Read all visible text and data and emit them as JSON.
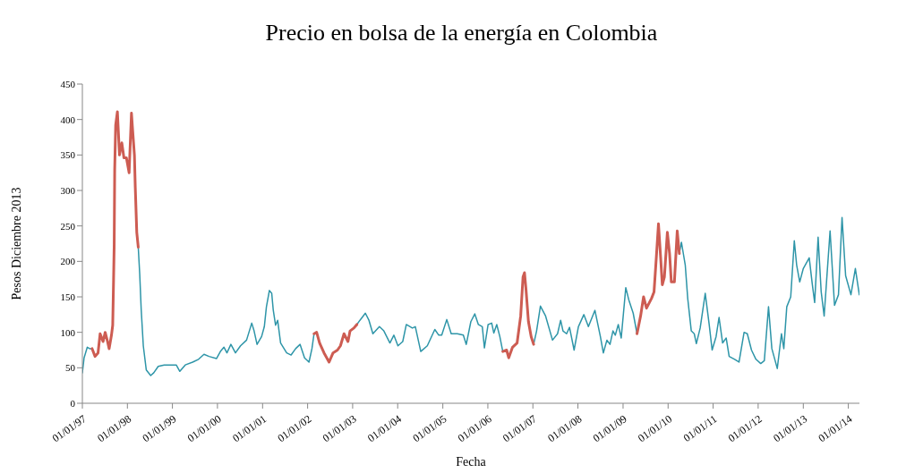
{
  "chart_data": {
    "type": "line",
    "title": "Precio en bolsa de la energía en Colombia",
    "xlabel": "Fecha",
    "ylabel": "Pesos Diciembre 2013",
    "xlim": [
      "1997-01-01",
      "2014-04-01"
    ],
    "xticks": [
      {
        "value": "1997-01-01",
        "label": "01/01/97"
      },
      {
        "value": "1998-01-01",
        "label": "01/01/98"
      },
      {
        "value": "1999-01-01",
        "label": "01/01/99"
      },
      {
        "value": "2000-01-01",
        "label": "01/01/00"
      },
      {
        "value": "2001-01-01",
        "label": "01/01/01"
      },
      {
        "value": "2002-01-01",
        "label": "01/01/02"
      },
      {
        "value": "2003-01-01",
        "label": "01/01/03"
      },
      {
        "value": "2004-01-01",
        "label": "01/01/04"
      },
      {
        "value": "2005-01-01",
        "label": "01/01/05"
      },
      {
        "value": "2006-01-01",
        "label": "01/01/06"
      },
      {
        "value": "2007-01-01",
        "label": "01/01/07"
      },
      {
        "value": "2008-01-01",
        "label": "01/01/08"
      },
      {
        "value": "2009-01-01",
        "label": "01/01/09"
      },
      {
        "value": "2010-01-01",
        "label": "01/01/10"
      },
      {
        "value": "2011-01-01",
        "label": "01/01/11"
      },
      {
        "value": "2012-01-01",
        "label": "01/01/12"
      },
      {
        "value": "2013-01-01",
        "label": "01/01/13"
      },
      {
        "value": "2014-01-01",
        "label": "01/01/14"
      }
    ],
    "ylim": [
      0,
      450
    ],
    "yticks": [
      0,
      50,
      100,
      150,
      200,
      250,
      300,
      350,
      400,
      450
    ],
    "line_style": "solid",
    "series": [
      {
        "color": "#2e95a8",
        "x": [
          "1997-01-01",
          "1997-01-15",
          "1997-02-10",
          "1997-03-01",
          "1997-03-21",
          "1997-06-01",
          "1998-03-30",
          "1998-04-11",
          "1998-04-23",
          "1998-05-10",
          "1998-06-03",
          "1998-07-09",
          "1998-08-03",
          "1998-09-08",
          "1998-10-26",
          "1998-12-27",
          "1999-02-01",
          "1999-03-02",
          "1999-04-15",
          "1999-06-14",
          "1999-08-01",
          "1999-09-14",
          "1999-10-25",
          "1999-12-24",
          "2000-01-25",
          "2000-02-23",
          "2000-03-18",
          "2000-04-19",
          "2000-05-26",
          "2000-07-06",
          "2000-08-24",
          "2000-10-05",
          "2000-10-24",
          "2000-11-17",
          "2000-12-24",
          "2001-01-15",
          "2001-02-01",
          "2001-02-25",
          "2001-03-16",
          "2001-03-28",
          "2001-04-16",
          "2001-05-03",
          "2001-05-27",
          "2001-07-15",
          "2001-08-20",
          "2001-09-26",
          "2001-11-01",
          "2001-12-07",
          "2002-01-12",
          "2002-02-05",
          "2002-02-22",
          "2002-08-01",
          "2003-02-04",
          "2003-03-01",
          "2003-04-14",
          "2003-05-13",
          "2003-06-14",
          "2003-08-06",
          "2003-09-11",
          "2003-10-30",
          "2003-12-01",
          "2004-01-03",
          "2004-02-11",
          "2004-03-11",
          "2004-04-29",
          "2004-05-23",
          "2004-07-06",
          "2004-08-28",
          "2004-10-28",
          "2004-11-29",
          "2004-12-23",
          "2005-02-02",
          "2005-03-10",
          "2005-04-28",
          "2005-06-16",
          "2005-07-10",
          "2005-08-16",
          "2005-09-17",
          "2005-10-16",
          "2005-11-17",
          "2005-12-04",
          "2006-01-03",
          "2006-02-01",
          "2006-02-18",
          "2006-03-14",
          "2006-04-08",
          "2006-05-02",
          "2006-09-01",
          "2007-01-07",
          "2007-01-31",
          "2007-03-03",
          "2007-04-14",
          "2007-06-09",
          "2007-07-20",
          "2007-08-14",
          "2007-09-02",
          "2007-10-01",
          "2007-10-25",
          "2007-12-01",
          "2008-01-05",
          "2008-02-18",
          "2008-03-26",
          "2008-05-18",
          "2008-07-01",
          "2008-07-25",
          "2008-08-23",
          "2008-09-17",
          "2008-10-11",
          "2008-10-30",
          "2008-11-23",
          "2008-12-17",
          "2009-01-23",
          "2009-02-16",
          "2009-03-24",
          "2009-04-24",
          "2009-10-01",
          "2010-04-02",
          "2010-04-19",
          "2010-05-20",
          "2010-06-09",
          "2010-07-08",
          "2010-08-01",
          "2010-08-18",
          "2010-09-18",
          "2010-10-29",
          "2010-11-30",
          "2010-12-24",
          "2011-01-25",
          "2011-02-18",
          "2011-03-19",
          "2011-04-17",
          "2011-05-11",
          "2011-06-24",
          "2011-07-30",
          "2011-09-09",
          "2011-10-05",
          "2011-11-08",
          "2011-12-14",
          "2012-01-22",
          "2012-02-20",
          "2012-03-25",
          "2012-04-21",
          "2012-06-04",
          "2012-07-08",
          "2012-07-27",
          "2012-08-20",
          "2012-09-21",
          "2012-10-20",
          "2012-11-08",
          "2012-12-03",
          "2013-01-01",
          "2013-02-18",
          "2013-03-14",
          "2013-04-03",
          "2013-05-01",
          "2013-05-26",
          "2013-06-19",
          "2013-08-06",
          "2013-09-11",
          "2013-10-13",
          "2013-11-11",
          "2013-12-10",
          "2014-01-22",
          "2014-02-27",
          "2014-03-31"
        ],
        "values": [
          43,
          64,
          79,
          77,
          77,
          null,
          220,
          182,
          132,
          81,
          47,
          39,
          43,
          52,
          54,
          54,
          54,
          45,
          54,
          58,
          62,
          69,
          66,
          63,
          73,
          79,
          71,
          83,
          71,
          81,
          89,
          113,
          102,
          83,
          94,
          108,
          136,
          159,
          155,
          132,
          110,
          117,
          85,
          71,
          68,
          77,
          83,
          64,
          58,
          77,
          98,
          null,
          111,
          117,
          127,
          117,
          98,
          108,
          102,
          85,
          96,
          81,
          87,
          111,
          106,
          108,
          73,
          81,
          104,
          96,
          96,
          118,
          98,
          98,
          96,
          83,
          115,
          126,
          111,
          108,
          78,
          111,
          113,
          99,
          111,
          94,
          73,
          null,
          83,
          102,
          137,
          123,
          89,
          98,
          117,
          102,
          98,
          107,
          75,
          108,
          125,
          108,
          131,
          94,
          71,
          89,
          83,
          102,
          96,
          111,
          92,
          163,
          146,
          127,
          98,
          null,
          211,
          227,
          195,
          148,
          102,
          98,
          84,
          106,
          155,
          111,
          75,
          94,
          121,
          85,
          92,
          66,
          62,
          58,
          100,
          98,
          75,
          62,
          56,
          60,
          136,
          77,
          49,
          98,
          77,
          136,
          150,
          229,
          195,
          171,
          190,
          205,
          169,
          142,
          234,
          157,
          123,
          243,
          138,
          153,
          262,
          180,
          153,
          190,
          153
        ]
      },
      {
        "color": "#cd5c52",
        "x": [
          "1997-03-21",
          "1997-04-14",
          "1997-05-08",
          "1997-05-25",
          "1997-06-18",
          "1997-07-05",
          "1997-07-24",
          "1997-08-06",
          "1997-08-25",
          "1997-09-04",
          "1997-09-11",
          "1997-09-16",
          "1997-09-20",
          "1997-09-28",
          "1997-10-12",
          "1997-10-29",
          "1997-11-17",
          "1997-12-04",
          "1997-12-24",
          "1998-01-15",
          "1998-02-03",
          "1998-02-15",
          "1998-02-27",
          "1998-03-06",
          "1998-03-18",
          "1998-03-30",
          "2000-01-01",
          "2002-02-22",
          "2002-03-15",
          "2002-04-08",
          "2002-05-14",
          "2002-06-24",
          "2002-07-26",
          "2002-08-31",
          "2002-09-24",
          "2002-10-23",
          "2002-11-24",
          "2002-12-11",
          "2003-01-11",
          "2003-02-04",
          "2004-06-01",
          "2006-05-02",
          "2006-06-02",
          "2006-06-19",
          "2006-07-20",
          "2006-08-26",
          "2006-09-24",
          "2006-10-13",
          "2006-10-25",
          "2006-11-06",
          "2006-11-26",
          "2006-12-18",
          "2007-01-07",
          "2008-01-01",
          "2009-04-24",
          "2009-05-23",
          "2009-06-16",
          "2009-07-10",
          "2009-08-20",
          "2009-09-09",
          "2009-09-28",
          "2009-10-15",
          "2009-11-01",
          "2009-11-15",
          "2009-12-02",
          "2009-12-26",
          "2010-01-13",
          "2010-01-27",
          "2010-02-21",
          "2010-03-16",
          "2010-04-02"
        ],
        "values": [
          77,
          66,
          71,
          98,
          87,
          100,
          87,
          77,
          96,
          110,
          174,
          224,
          329,
          392,
          411,
          350,
          367,
          346,
          346,
          325,
          409,
          379,
          350,
          304,
          241,
          220,
          null,
          98,
          100,
          85,
          71,
          58,
          71,
          75,
          81,
          98,
          87,
          102,
          106,
          111,
          null,
          73,
          75,
          64,
          79,
          85,
          123,
          178,
          184,
          161,
          115,
          94,
          83,
          null,
          98,
          123,
          150,
          134,
          148,
          157,
          207,
          253,
          207,
          167,
          178,
          241,
          211,
          171,
          171,
          243,
          211
        ]
      }
    ]
  }
}
